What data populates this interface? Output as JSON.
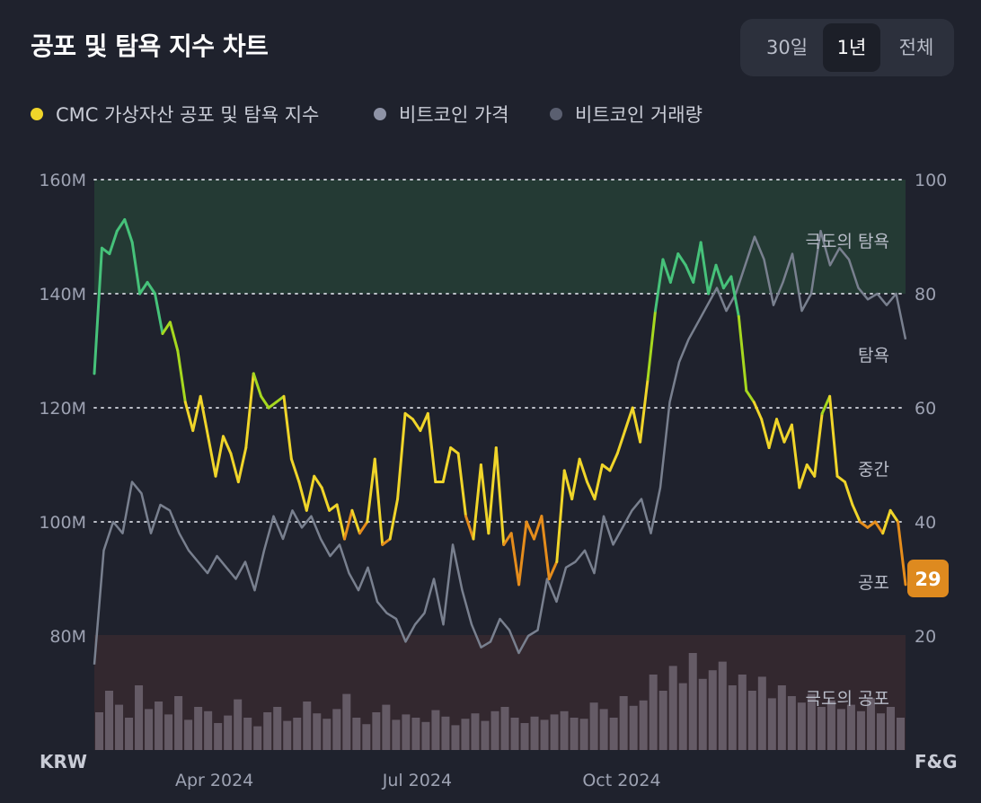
{
  "header": {
    "title": "공포 및 탐욕 지수 차트"
  },
  "range_tabs": [
    {
      "label": "30일",
      "active": false
    },
    {
      "label": "1년",
      "active": true
    },
    {
      "label": "전체",
      "active": false
    }
  ],
  "legend": [
    {
      "label": "CMC 가상자산 공포 및 탐욕 지수",
      "color": "#f0d52a"
    },
    {
      "label": "비트코인 가격",
      "color": "#8e93a6"
    },
    {
      "label": "비트코인 거래량",
      "color": "#5a5f70"
    }
  ],
  "chart_data": {
    "type": "line",
    "left_axis": {
      "label": "KRW",
      "ticks": [
        "160M",
        "140M",
        "120M",
        "100M",
        "80M"
      ]
    },
    "right_axis": {
      "label": "F&G",
      "ticks": [
        "100",
        "80",
        "60",
        "40",
        "20"
      ],
      "range": [
        0,
        100
      ]
    },
    "x_ticks": [
      "Apr 2024",
      "Jul 2024",
      "Oct 2024"
    ],
    "zones": [
      {
        "label": "극도의 탐욕",
        "from": 80,
        "to": 100,
        "color": "#243a34"
      },
      {
        "label": "탐욕",
        "from": 60,
        "to": 80
      },
      {
        "label": "중간",
        "from": 40,
        "to": 60
      },
      {
        "label": "공포",
        "from": 20,
        "to": 40
      },
      {
        "label": "극도의 공포",
        "from": 0,
        "to": 20,
        "color": "#33282f"
      }
    ],
    "current_value": "29",
    "fear_greed_index": [
      66,
      88,
      87,
      91,
      93,
      89,
      80,
      82,
      80,
      73,
      75,
      70,
      61,
      56,
      62,
      55,
      48,
      55,
      52,
      47,
      53,
      66,
      62,
      60,
      61,
      62,
      51,
      47,
      42,
      48,
      46,
      42,
      43,
      37,
      42,
      38,
      40,
      51,
      36,
      37,
      44,
      59,
      58,
      56,
      59,
      47,
      47,
      53,
      52,
      41,
      37,
      50,
      38,
      53,
      36,
      38,
      29,
      40,
      37,
      41,
      30,
      33,
      49,
      44,
      51,
      47,
      44,
      50,
      49,
      52,
      56,
      60,
      54,
      65,
      77,
      86,
      82,
      87,
      85,
      82,
      89,
      80,
      85,
      81,
      83,
      76,
      63,
      61,
      58,
      53,
      58,
      54,
      57,
      46,
      50,
      48,
      59,
      62,
      48,
      47,
      43,
      40,
      39,
      40,
      38,
      42,
      40,
      29
    ],
    "btc_price": [
      75,
      95,
      100,
      98,
      107,
      105,
      98,
      103,
      102,
      98,
      95,
      93,
      91,
      94,
      92,
      90,
      93,
      88,
      95,
      101,
      97,
      102,
      99,
      101,
      97,
      94,
      96,
      91,
      88,
      92,
      86,
      84,
      83,
      79,
      82,
      84,
      90,
      82,
      96,
      88,
      82,
      78,
      79,
      83,
      81,
      77,
      80,
      81,
      90,
      86,
      92,
      93,
      95,
      91,
      101,
      96,
      99,
      102,
      104,
      98,
      106,
      121,
      128,
      132,
      135,
      138,
      141,
      137,
      140,
      145,
      150,
      146,
      138,
      142,
      147,
      137,
      140,
      151,
      145,
      148,
      146,
      141,
      139,
      140,
      138,
      140,
      132
    ],
    "volume_relative": [
      0.35,
      0.55,
      0.42,
      0.3,
      0.6,
      0.38,
      0.45,
      0.33,
      0.5,
      0.28,
      0.4,
      0.36,
      0.25,
      0.32,
      0.47,
      0.3,
      0.22,
      0.35,
      0.4,
      0.27,
      0.3,
      0.45,
      0.34,
      0.29,
      0.38,
      0.52,
      0.3,
      0.24,
      0.35,
      0.42,
      0.28,
      0.33,
      0.3,
      0.26,
      0.37,
      0.31,
      0.23,
      0.29,
      0.34,
      0.27,
      0.36,
      0.4,
      0.3,
      0.25,
      0.31,
      0.28,
      0.33,
      0.36,
      0.3,
      0.29,
      0.44,
      0.38,
      0.3,
      0.5,
      0.41,
      0.46,
      0.7,
      0.55,
      0.78,
      0.62,
      0.9,
      0.66,
      0.74,
      0.82,
      0.6,
      0.7,
      0.55,
      0.68,
      0.48,
      0.6,
      0.5,
      0.44,
      0.52,
      0.4,
      0.46,
      0.38,
      0.42,
      0.36,
      0.48,
      0.34,
      0.4,
      0.3
    ]
  }
}
